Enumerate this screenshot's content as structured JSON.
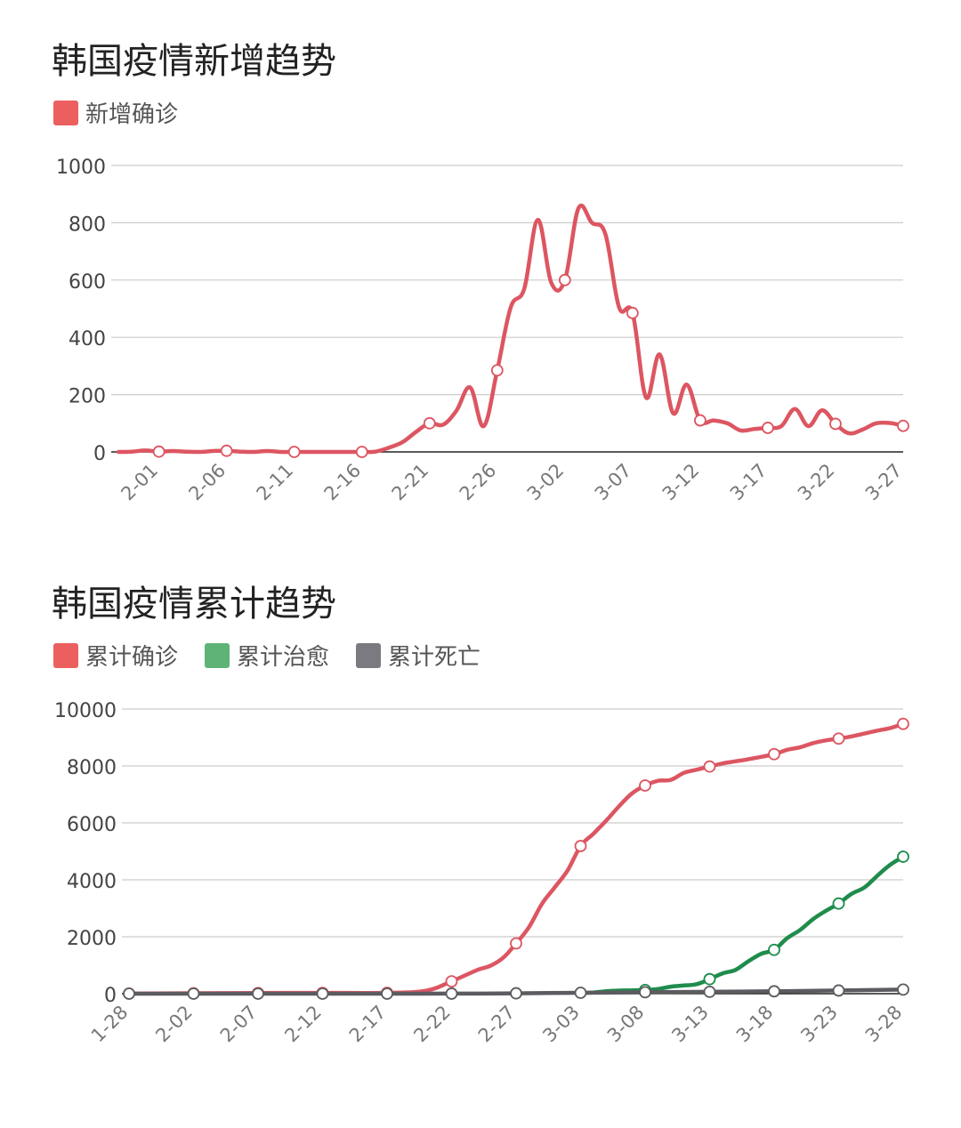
{
  "charts": [
    {
      "title": "韩国疫情新增趋势",
      "legend": [
        {
          "label": "新增确诊",
          "color": "#ec5f5f"
        }
      ]
    },
    {
      "title": "韩国疫情累计趋势",
      "legend": [
        {
          "label": "累计确诊",
          "color": "#ec5f5f"
        },
        {
          "label": "累计治愈",
          "color": "#5fb376"
        },
        {
          "label": "累计死亡",
          "color": "#7a7a80"
        }
      ]
    }
  ],
  "chart_data": [
    {
      "type": "line",
      "title": "韩国疫情新增趋势",
      "ylim": [
        0,
        1000
      ],
      "yticks": [
        "0",
        "200",
        "400",
        "600",
        "800",
        "1000"
      ],
      "xticks": [
        "2-01",
        "2-06",
        "2-11",
        "2-16",
        "2-21",
        "2-26",
        "3-02",
        "3-07",
        "3-12",
        "3-17",
        "3-22",
        "3-27"
      ],
      "x_range": [
        "1-29",
        "3-27"
      ],
      "grid": true,
      "legend_position": "top-left",
      "series": [
        {
          "name": "新增确诊",
          "color": "#dc5662",
          "x": [
            "1-29",
            "1-30",
            "1-31",
            "2-01",
            "2-02",
            "2-03",
            "2-04",
            "2-05",
            "2-06",
            "2-07",
            "2-08",
            "2-09",
            "2-10",
            "2-11",
            "2-12",
            "2-13",
            "2-14",
            "2-15",
            "2-16",
            "2-17",
            "2-18",
            "2-19",
            "2-20",
            "2-21",
            "2-22",
            "2-23",
            "2-24",
            "2-25",
            "2-26",
            "2-27",
            "2-28",
            "2-29",
            "3-01",
            "3-02",
            "3-03",
            "3-04",
            "3-05",
            "3-06",
            "3-07",
            "3-08",
            "3-09",
            "3-10",
            "3-11",
            "3-12",
            "3-13",
            "3-14",
            "3-15",
            "3-16",
            "3-17",
            "3-18",
            "3-19",
            "3-20",
            "3-21",
            "3-22",
            "3-23",
            "3-24",
            "3-25",
            "3-26",
            "3-27"
          ],
          "y": [
            0,
            1,
            5,
            1,
            3,
            1,
            0,
            3,
            4,
            1,
            0,
            3,
            0,
            0,
            0,
            0,
            0,
            0,
            0,
            1,
            15,
            34,
            70,
            100,
            95,
            145,
            225,
            90,
            285,
            505,
            570,
            810,
            590,
            600,
            850,
            800,
            760,
            505,
            485,
            190,
            340,
            135,
            235,
            110,
            110,
            100,
            75,
            80,
            84,
            90,
            150,
            90,
            145,
            98,
            65,
            78,
            100,
            101,
            91
          ],
          "markers": [
            "2-01",
            "2-06",
            "2-11",
            "2-16",
            "2-21",
            "2-26",
            "3-02",
            "3-07",
            "3-12",
            "3-17",
            "3-22",
            "3-27"
          ]
        }
      ]
    },
    {
      "type": "line",
      "title": "韩国疫情累计趋势",
      "ylim": [
        0,
        10000
      ],
      "yticks": [
        "0",
        "2000",
        "4000",
        "6000",
        "8000",
        "10000"
      ],
      "xticks": [
        "1-28",
        "2-02",
        "2-07",
        "2-12",
        "2-17",
        "2-22",
        "2-27",
        "3-03",
        "3-08",
        "3-13",
        "3-18",
        "3-23",
        "3-28"
      ],
      "x_range": [
        "1-28",
        "3-28"
      ],
      "grid": true,
      "legend_position": "top-left",
      "series": [
        {
          "name": "累计确诊",
          "color": "#dc5662",
          "x": [
            "1-28",
            "2-02",
            "2-07",
            "2-12",
            "2-17",
            "2-20",
            "2-22",
            "2-24",
            "2-25",
            "2-26",
            "2-27",
            "2-28",
            "2-29",
            "3-01",
            "3-02",
            "3-03",
            "3-04",
            "3-05",
            "3-06",
            "3-07",
            "3-08",
            "3-09",
            "3-10",
            "3-11",
            "3-12",
            "3-13",
            "3-14",
            "3-15",
            "3-16",
            "3-17",
            "3-18",
            "3-19",
            "3-20",
            "3-21",
            "3-22",
            "3-23",
            "3-24",
            "3-25",
            "3-26",
            "3-27",
            "3-28"
          ],
          "y": [
            4,
            15,
            24,
            28,
            30,
            104,
            433,
            833,
            977,
            1261,
            1766,
            2337,
            3150,
            3736,
            4335,
            5186,
            5621,
            6088,
            6593,
            7041,
            7313,
            7478,
            7513,
            7755,
            7869,
            7979,
            8086,
            8162,
            8236,
            8320,
            8413,
            8565,
            8652,
            8799,
            8897,
            8961,
            9037,
            9137,
            9241,
            9332,
            9478
          ],
          "markers": [
            "1-28",
            "2-02",
            "2-07",
            "2-12",
            "2-17",
            "2-22",
            "2-27",
            "3-03",
            "3-08",
            "3-13",
            "3-18",
            "3-23",
            "3-28"
          ]
        },
        {
          "name": "累计治愈",
          "color": "#1f8c4c",
          "x": [
            "3-03",
            "3-04",
            "3-05",
            "3-06",
            "3-07",
            "3-08",
            "3-09",
            "3-10",
            "3-11",
            "3-12",
            "3-13",
            "3-14",
            "3-15",
            "3-16",
            "3-17",
            "3-18",
            "3-19",
            "3-20",
            "3-21",
            "3-22",
            "3-23",
            "3-24",
            "3-25",
            "3-26",
            "3-27",
            "3-28"
          ],
          "y": [
            30,
            41,
            88,
            108,
            118,
            130,
            166,
            247,
            288,
            333,
            510,
            714,
            834,
            1137,
            1401,
            1540,
            1947,
            2233,
            2612,
            2909,
            3166,
            3507,
            3730,
            4144,
            4528,
            4811
          ],
          "markers": [
            "3-08",
            "3-13",
            "3-18",
            "3-23",
            "3-28"
          ]
        },
        {
          "name": "累计死亡",
          "color": "#5c5c60",
          "x": [
            "1-28",
            "2-02",
            "2-07",
            "2-12",
            "2-17",
            "2-22",
            "2-27",
            "3-03",
            "3-08",
            "3-13",
            "3-18",
            "3-23",
            "3-28"
          ],
          "y": [
            0,
            0,
            0,
            0,
            0,
            2,
            13,
            32,
            50,
            67,
            84,
            111,
            144
          ],
          "markers": [
            "1-28",
            "2-02",
            "2-07",
            "2-12",
            "2-17",
            "2-22",
            "2-27",
            "3-03",
            "3-08",
            "3-13",
            "3-18",
            "3-23",
            "3-28"
          ]
        }
      ]
    }
  ]
}
